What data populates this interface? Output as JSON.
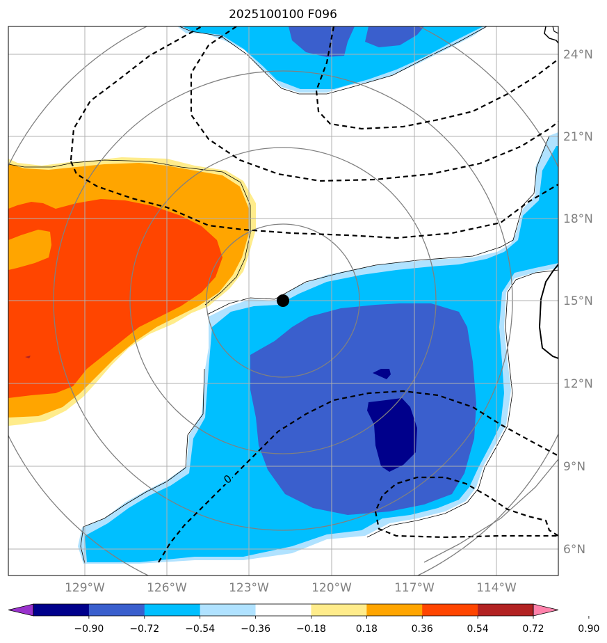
{
  "title": "2025100100 F096",
  "latitude_labels": [
    "24°N",
    "21°N",
    "18°N",
    "15°N",
    "12°N",
    "9°N",
    "6°N"
  ],
  "longitude_labels": [
    "129°W",
    "126°W",
    "123°W",
    "120°W",
    "117°W",
    "114°W"
  ],
  "colorbar": {
    "tick_labels": [
      "−0.90",
      "−0.72",
      "−0.54",
      "−0.36",
      "−0.18",
      "0.18",
      "0.36",
      "0.54",
      "0.72",
      "0.90"
    ],
    "colors": [
      "#9932cc",
      "#00008b",
      "#3a5fcd",
      "#00bfff",
      "#b0e2ff",
      "#ffffff",
      "#ffec8b",
      "#ffa500",
      "#ff4500",
      "#b22222",
      "#ff82ab"
    ],
    "extend": "both"
  },
  "contour_label": "0",
  "center_marker": {
    "lat": 15,
    "lon": "121.8°W"
  },
  "chart_data": {
    "type": "heatmap",
    "title": "2025100100 F096",
    "xlabel": "",
    "ylabel": "",
    "lon_range": [
      "131°W",
      "111°W"
    ],
    "lat_range": [
      "5°N",
      "25°N"
    ],
    "grid": true,
    "levels": [
      -0.9,
      -0.72,
      -0.54,
      -0.36,
      -0.18,
      0.18,
      0.36,
      0.54,
      0.72,
      0.9
    ]
  }
}
